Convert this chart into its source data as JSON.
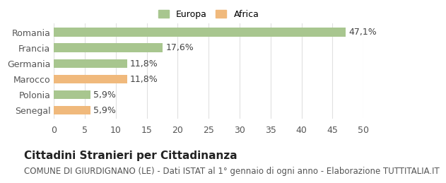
{
  "categories": [
    "Senegal",
    "Polonia",
    "Marocco",
    "Germania",
    "Francia",
    "Romania"
  ],
  "values": [
    5.9,
    5.9,
    11.8,
    11.8,
    17.6,
    47.1
  ],
  "labels": [
    "5,9%",
    "5,9%",
    "11,8%",
    "11,8%",
    "17,6%",
    "47,1%"
  ],
  "colors": [
    "#f0b97c",
    "#a8c68f",
    "#f0b97c",
    "#a8c68f",
    "#a8c68f",
    "#a8c68f"
  ],
  "continent": [
    "Africa",
    "Europa",
    "Africa",
    "Europa",
    "Europa",
    "Europa"
  ],
  "legend_europa_color": "#a8c68f",
  "legend_africa_color": "#f0b97c",
  "xlim": [
    0,
    50
  ],
  "xticks": [
    0,
    5,
    10,
    15,
    20,
    25,
    30,
    35,
    40,
    45,
    50
  ],
  "title_bold": "Cittadini Stranieri per Cittadinanza",
  "subtitle": "COMUNE DI GIURDIGNANO (LE) - Dati ISTAT al 1° gennaio di ogni anno - Elaborazione TUTTITALIA.IT",
  "background_color": "#ffffff",
  "grid_color": "#e0e0e0",
  "bar_height": 0.55,
  "label_fontsize": 9,
  "tick_fontsize": 9,
  "title_fontsize": 11,
  "subtitle_fontsize": 8.5
}
